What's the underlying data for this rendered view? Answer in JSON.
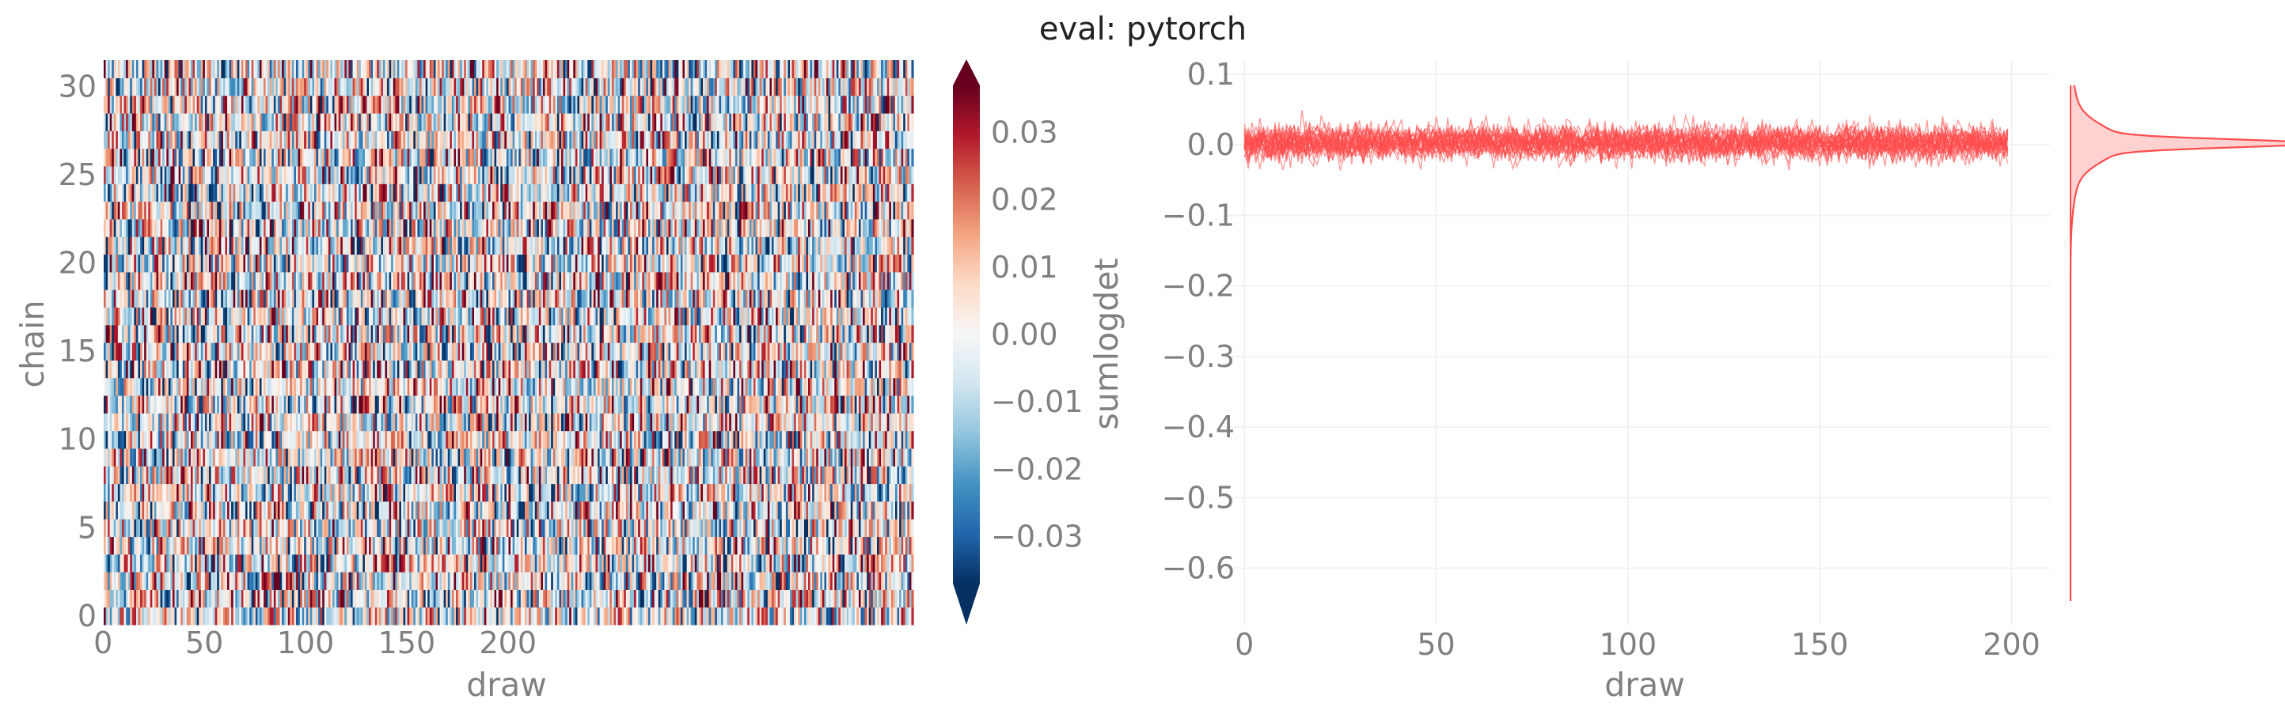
{
  "title": "eval: pytorch",
  "chart_data": [
    {
      "type": "heatmap",
      "xlabel": "draw",
      "ylabel": "chain",
      "x_ticks": [
        "0",
        "50",
        "100",
        "150",
        "200"
      ],
      "y_ticks": [
        "0",
        "5",
        "10",
        "15",
        "20",
        "25",
        "30"
      ],
      "n_chains": 32,
      "n_draws": 400,
      "colormap": "RdBu_r",
      "colorbar": {
        "label": "sumlogdet",
        "range": [
          -0.037,
          0.037
        ],
        "ticks": [
          "0.03",
          "0.02",
          "0.01",
          "0.00",
          "−0.01",
          "−0.02",
          "−0.03"
        ],
        "tick_values": [
          0.03,
          0.02,
          0.01,
          0.0,
          -0.01,
          -0.02,
          -0.03
        ]
      },
      "value_distribution": {
        "mean": 0.0,
        "std": 0.02
      }
    },
    {
      "type": "line",
      "xlabel": "draw",
      "ylabel": "",
      "xlim": [
        -5,
        210
      ],
      "ylim": [
        -0.68,
        0.12
      ],
      "x_ticks": [
        "0",
        "50",
        "100",
        "150",
        "200"
      ],
      "x_tick_values": [
        0,
        50,
        100,
        150,
        200
      ],
      "y_ticks": [
        "0.1",
        "0.0",
        "−0.1",
        "−0.2",
        "−0.3",
        "−0.4",
        "−0.5",
        "−0.6"
      ],
      "y_tick_values": [
        0.1,
        0.0,
        -0.1,
        -0.2,
        -0.3,
        -0.4,
        -0.5,
        -0.6
      ],
      "series_color": "#ff4d4d",
      "n_traces": 32,
      "n_points": 200,
      "trace_mean": 0.003,
      "trace_std": 0.012,
      "trace_range": [
        -0.075,
        0.06
      ],
      "grid": true,
      "marginal_density": {
        "type": "kde",
        "orientation": "vertical",
        "peak": 0.002
      }
    }
  ]
}
